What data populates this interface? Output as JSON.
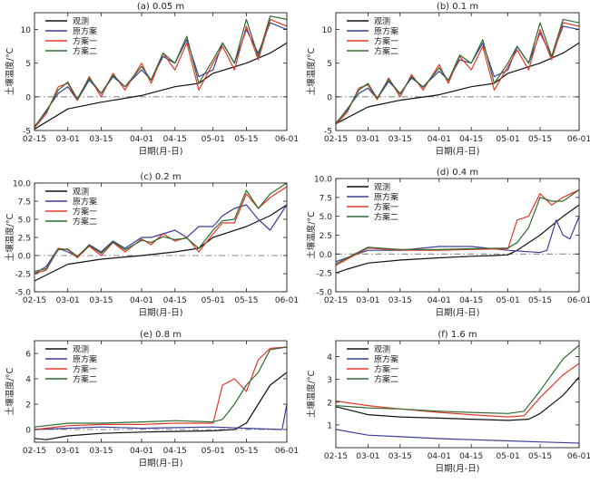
{
  "x_ticks": [
    "02-15",
    "03-01",
    "03-15",
    "04-01",
    "04-15",
    "05-01",
    "05-15",
    "06-01"
  ],
  "xlabel": "日期(月-日)",
  "ylabel": "土壤温度/°C",
  "legend": [
    "观测",
    "原方案",
    "方案一",
    "方案二"
  ],
  "series_colors": {
    "观测": "#111111",
    "原方案": "#3b3f9a",
    "方案一": "#e0392b",
    "方案二": "#2f6b2f"
  },
  "zero_line_color": "#8a8a8a",
  "chart_data": [
    {
      "type": "line",
      "title": "(a) 0.05 m",
      "ylim": [
        -5,
        12.5
      ],
      "yticks": [
        -5,
        0,
        5,
        10
      ],
      "series": [
        {
          "name": "观测",
          "x": [
            "02-15",
            "03-01",
            "03-15",
            "04-01",
            "04-15",
            "04-25",
            "05-01",
            "05-15",
            "05-25",
            "06-01"
          ],
          "values": [
            -4.8,
            -1.8,
            -0.8,
            0.2,
            1.5,
            2.0,
            3.5,
            5.0,
            6.5,
            8.0
          ]
        },
        {
          "name": "原方案",
          "x": [
            "02-15",
            "02-20",
            "02-25",
            "03-01",
            "03-05",
            "03-10",
            "03-15",
            "03-20",
            "03-25",
            "04-01",
            "04-05",
            "04-10",
            "04-15",
            "04-20",
            "04-25",
            "05-01",
            "05-05",
            "05-10",
            "05-15",
            "05-20",
            "05-25",
            "06-01"
          ],
          "values": [
            -4.5,
            -2.0,
            0.5,
            1.5,
            -0.5,
            2.5,
            0.5,
            3.0,
            1.5,
            4.0,
            2.5,
            6.0,
            5.0,
            8.5,
            3.0,
            4.0,
            8.0,
            5.0,
            10.0,
            6.5,
            11.0,
            10.0
          ]
        },
        {
          "name": "方案一",
          "x": [
            "02-15",
            "02-20",
            "02-25",
            "03-01",
            "03-05",
            "03-10",
            "03-15",
            "03-20",
            "03-25",
            "04-01",
            "04-05",
            "04-10",
            "04-15",
            "04-20",
            "04-25",
            "05-01",
            "05-05",
            "05-10",
            "05-15",
            "05-20",
            "05-25",
            "06-01"
          ],
          "values": [
            -4.6,
            -2.5,
            1.5,
            2.0,
            -0.5,
            3.0,
            0.0,
            3.5,
            1.0,
            5.0,
            2.0,
            6.5,
            4.0,
            8.0,
            1.0,
            5.0,
            7.5,
            4.0,
            10.5,
            5.5,
            11.5,
            10.5
          ]
        },
        {
          "name": "方案二",
          "x": [
            "02-15",
            "02-20",
            "02-25",
            "03-01",
            "03-05",
            "03-10",
            "03-15",
            "03-20",
            "03-25",
            "04-01",
            "04-05",
            "04-10",
            "04-15",
            "04-20",
            "04-25",
            "05-01",
            "05-05",
            "05-10",
            "05-15",
            "05-20",
            "05-25",
            "06-01"
          ],
          "values": [
            -4.4,
            -2.2,
            1.0,
            2.2,
            -0.3,
            2.8,
            0.5,
            3.2,
            1.5,
            4.5,
            2.5,
            6.5,
            5.0,
            9.0,
            2.0,
            5.5,
            8.0,
            5.0,
            11.5,
            6.0,
            12.0,
            11.5
          ]
        }
      ]
    },
    {
      "type": "line",
      "title": "(b) 0.1 m",
      "ylim": [
        -5,
        12.5
      ],
      "yticks": [
        -5,
        0,
        5,
        10
      ],
      "series": [
        {
          "name": "观测",
          "x": [
            "02-15",
            "03-01",
            "03-15",
            "04-01",
            "04-15",
            "04-25",
            "05-01",
            "05-15",
            "05-25",
            "06-01"
          ],
          "values": [
            -4.0,
            -1.5,
            -0.5,
            0.3,
            1.5,
            2.0,
            3.5,
            5.0,
            6.5,
            8.0
          ]
        },
        {
          "name": "原方案",
          "x": [
            "02-15",
            "02-20",
            "02-25",
            "03-01",
            "03-05",
            "03-10",
            "03-15",
            "03-20",
            "03-25",
            "04-01",
            "04-05",
            "04-10",
            "04-15",
            "04-20",
            "04-25",
            "05-01",
            "05-05",
            "05-10",
            "05-15",
            "05-20",
            "05-25",
            "06-01"
          ],
          "values": [
            -4.0,
            -1.8,
            0.5,
            1.3,
            -0.3,
            2.3,
            0.5,
            2.8,
            1.5,
            3.8,
            2.5,
            5.5,
            5.0,
            8.0,
            3.0,
            4.0,
            7.5,
            5.0,
            9.5,
            6.0,
            10.5,
            10.0
          ]
        },
        {
          "name": "方案一",
          "x": [
            "02-15",
            "02-20",
            "02-25",
            "03-01",
            "03-05",
            "03-10",
            "03-15",
            "03-20",
            "03-25",
            "04-01",
            "04-05",
            "04-10",
            "04-15",
            "04-20",
            "04-25",
            "05-01",
            "05-05",
            "05-10",
            "05-15",
            "05-20",
            "05-25",
            "06-01"
          ],
          "values": [
            -4.1,
            -2.3,
            1.3,
            1.8,
            -0.4,
            2.8,
            0.0,
            3.3,
            1.0,
            4.8,
            2.0,
            6.0,
            4.0,
            7.5,
            1.0,
            4.5,
            7.0,
            4.0,
            10.0,
            5.5,
            11.0,
            10.5
          ]
        },
        {
          "name": "方案二",
          "x": [
            "02-15",
            "02-20",
            "02-25",
            "03-01",
            "03-05",
            "03-10",
            "03-15",
            "03-20",
            "03-25",
            "04-01",
            "04-05",
            "04-10",
            "04-15",
            "04-20",
            "04-25",
            "05-01",
            "05-05",
            "05-10",
            "05-15",
            "05-20",
            "05-25",
            "06-01"
          ],
          "values": [
            -3.9,
            -2.0,
            1.0,
            2.0,
            -0.2,
            2.6,
            0.4,
            3.0,
            1.4,
            4.3,
            2.4,
            6.2,
            5.0,
            8.5,
            2.0,
            5.0,
            7.5,
            5.0,
            11.0,
            6.0,
            11.5,
            11.0
          ]
        }
      ]
    },
    {
      "type": "line",
      "title": "(c) 0.2 m",
      "ylim": [
        -5,
        10
      ],
      "yticks": [
        -5.0,
        -2.5,
        0.0,
        2.5,
        5.0,
        7.5,
        10.0
      ],
      "series": [
        {
          "name": "观测",
          "x": [
            "02-15",
            "03-01",
            "03-15",
            "04-01",
            "04-15",
            "04-25",
            "05-01",
            "05-15",
            "05-25",
            "06-01"
          ],
          "values": [
            -3.5,
            -1.2,
            -0.5,
            0.0,
            0.5,
            1.0,
            2.5,
            4.0,
            5.5,
            7.0
          ]
        },
        {
          "name": "原方案",
          "x": [
            "02-15",
            "02-20",
            "02-25",
            "03-01",
            "03-05",
            "03-10",
            "03-15",
            "03-20",
            "03-25",
            "04-01",
            "04-05",
            "04-10",
            "04-15",
            "04-20",
            "04-25",
            "05-01",
            "05-05",
            "05-10",
            "05-15",
            "05-20",
            "05-25",
            "06-01"
          ],
          "values": [
            -2.5,
            -1.5,
            1.0,
            0.5,
            -0.2,
            1.5,
            0.5,
            2.0,
            1.0,
            2.5,
            2.5,
            3.0,
            3.5,
            2.5,
            4.0,
            4.0,
            5.5,
            6.5,
            7.0,
            5.0,
            3.5,
            7.0
          ]
        },
        {
          "name": "方案一",
          "x": [
            "02-15",
            "02-20",
            "02-25",
            "03-01",
            "03-05",
            "03-10",
            "03-15",
            "03-20",
            "03-25",
            "04-01",
            "04-05",
            "04-10",
            "04-15",
            "04-20",
            "04-25",
            "05-01",
            "05-05",
            "05-10",
            "05-15",
            "05-20",
            "05-25",
            "06-01"
          ],
          "values": [
            -2.5,
            -2.0,
            1.0,
            0.8,
            -0.3,
            1.3,
            0.0,
            1.8,
            0.5,
            2.3,
            1.5,
            3.0,
            2.0,
            2.5,
            0.5,
            3.0,
            4.5,
            4.5,
            8.5,
            6.5,
            8.0,
            9.5
          ]
        },
        {
          "name": "方案二",
          "x": [
            "02-15",
            "02-20",
            "02-25",
            "03-01",
            "03-05",
            "03-10",
            "03-15",
            "03-20",
            "03-25",
            "04-01",
            "04-05",
            "04-10",
            "04-15",
            "04-20",
            "04-25",
            "05-01",
            "05-05",
            "05-10",
            "05-15",
            "05-20",
            "05-25",
            "06-01"
          ],
          "values": [
            -2.2,
            -1.8,
            0.8,
            0.9,
            -0.1,
            1.4,
            0.3,
            1.9,
            0.8,
            2.1,
            1.8,
            2.6,
            2.2,
            2.4,
            1.0,
            3.5,
            4.8,
            5.0,
            9.0,
            6.5,
            8.5,
            10.0
          ]
        }
      ]
    },
    {
      "type": "line",
      "title": "(d) 0.4 m",
      "ylim": [
        -5,
        10
      ],
      "yticks": [
        -5.0,
        -2.5,
        0.0,
        2.5,
        5.0,
        7.5,
        10.0
      ],
      "series": [
        {
          "name": "观测",
          "x": [
            "02-15",
            "02-20",
            "03-01",
            "03-15",
            "04-01",
            "04-15",
            "04-25",
            "05-01",
            "05-05",
            "05-15",
            "05-25",
            "06-01"
          ],
          "values": [
            -2.5,
            -2.0,
            -1.2,
            -0.8,
            -0.5,
            -0.3,
            -0.2,
            -0.1,
            0.5,
            2.5,
            5.0,
            6.5
          ]
        },
        {
          "name": "原方案",
          "x": [
            "02-15",
            "03-01",
            "03-15",
            "04-01",
            "04-15",
            "05-01",
            "05-10",
            "05-15",
            "05-18",
            "05-22",
            "05-25",
            "05-28",
            "06-01"
          ],
          "values": [
            -1.0,
            0.5,
            0.5,
            1.0,
            1.0,
            0.5,
            0.3,
            0.2,
            0.5,
            4.5,
            2.5,
            2.0,
            5.0
          ]
        },
        {
          "name": "方案一",
          "x": [
            "02-15",
            "03-01",
            "03-15",
            "04-01",
            "04-15",
            "05-01",
            "05-05",
            "05-10",
            "05-15",
            "05-20",
            "05-25",
            "06-01"
          ],
          "values": [
            -1.5,
            0.8,
            0.5,
            0.5,
            0.6,
            0.7,
            4.5,
            5.0,
            8.0,
            6.5,
            7.5,
            8.5
          ]
        },
        {
          "name": "方案二",
          "x": [
            "02-15",
            "03-01",
            "03-15",
            "04-01",
            "04-15",
            "05-01",
            "05-05",
            "05-10",
            "05-15",
            "05-20",
            "05-25",
            "06-01"
          ],
          "values": [
            -1.3,
            0.9,
            0.6,
            0.6,
            0.7,
            0.8,
            1.5,
            3.5,
            7.5,
            7.0,
            7.0,
            8.5
          ]
        }
      ]
    },
    {
      "type": "line",
      "title": "(e) 0.8 m",
      "ylim": [
        -1,
        7
      ],
      "yticks": [
        0,
        2,
        4,
        6
      ],
      "series": [
        {
          "name": "观测",
          "x": [
            "02-15",
            "02-20",
            "03-01",
            "03-15",
            "04-01",
            "04-15",
            "05-01",
            "05-10",
            "05-15",
            "05-20",
            "05-25",
            "06-01"
          ],
          "values": [
            -0.7,
            -0.8,
            -0.5,
            -0.3,
            -0.2,
            -0.15,
            -0.1,
            0.0,
            0.5,
            2.0,
            3.5,
            4.5
          ]
        },
        {
          "name": "原方案",
          "x": [
            "02-15",
            "03-01",
            "03-15",
            "04-01",
            "04-15",
            "05-01",
            "05-15",
            "05-30",
            "06-01"
          ],
          "values": [
            0.0,
            0.1,
            0.2,
            0.1,
            0.15,
            0.2,
            0.1,
            0.0,
            2.0
          ]
        },
        {
          "name": "方案一",
          "x": [
            "02-15",
            "03-01",
            "03-15",
            "04-01",
            "04-15",
            "05-01",
            "05-05",
            "05-10",
            "05-15",
            "05-20",
            "05-25",
            "06-01"
          ],
          "values": [
            0.0,
            0.3,
            0.4,
            0.4,
            0.5,
            0.5,
            3.5,
            4.0,
            3.0,
            5.5,
            6.4,
            6.5
          ]
        },
        {
          "name": "方案二",
          "x": [
            "02-15",
            "03-01",
            "03-15",
            "04-01",
            "04-15",
            "05-01",
            "05-05",
            "05-10",
            "05-15",
            "05-20",
            "05-25",
            "06-01"
          ],
          "values": [
            0.2,
            0.5,
            0.5,
            0.6,
            0.7,
            0.6,
            0.8,
            2.0,
            3.5,
            4.5,
            6.3,
            6.5
          ]
        }
      ]
    },
    {
      "type": "line",
      "title": "(f) 1.6 m",
      "ylim": [
        0,
        4.7
      ],
      "yticks": [
        1,
        2,
        3,
        4
      ],
      "series": [
        {
          "name": "观测",
          "x": [
            "02-15",
            "03-01",
            "03-15",
            "04-01",
            "04-15",
            "05-01",
            "05-10",
            "05-15",
            "05-25",
            "06-01"
          ],
          "values": [
            1.8,
            1.45,
            1.35,
            1.3,
            1.25,
            1.2,
            1.25,
            1.5,
            2.3,
            3.1
          ]
        },
        {
          "name": "原方案",
          "x": [
            "02-15",
            "03-01",
            "03-15",
            "04-01",
            "04-15",
            "05-01",
            "05-15",
            "06-01"
          ],
          "values": [
            0.8,
            0.55,
            0.48,
            0.4,
            0.35,
            0.3,
            0.25,
            0.2
          ]
        },
        {
          "name": "方案一",
          "x": [
            "02-15",
            "03-01",
            "03-15",
            "04-01",
            "04-15",
            "05-01",
            "05-08",
            "05-15",
            "05-25",
            "06-01"
          ],
          "values": [
            2.05,
            1.85,
            1.7,
            1.55,
            1.45,
            1.35,
            1.4,
            2.2,
            3.2,
            3.7
          ]
        },
        {
          "name": "方案二",
          "x": [
            "02-15",
            "03-01",
            "03-15",
            "04-01",
            "04-15",
            "05-01",
            "05-08",
            "05-15",
            "05-25",
            "06-01"
          ],
          "values": [
            1.85,
            1.75,
            1.7,
            1.6,
            1.55,
            1.5,
            1.6,
            2.5,
            3.9,
            4.5
          ]
        }
      ]
    }
  ]
}
